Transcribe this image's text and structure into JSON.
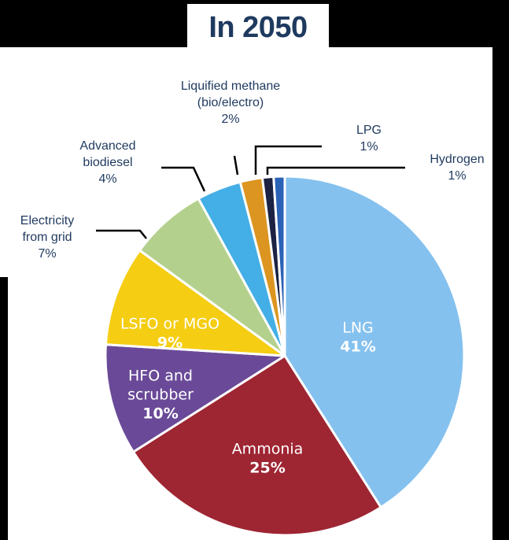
{
  "chart_data": {
    "type": "pie",
    "title": "In 2050",
    "start_angle_deg": 0,
    "direction": "clockwise",
    "slices": [
      {
        "label": [
          "LNG"
        ],
        "value": 41,
        "value_label": "41%",
        "color": "#85c1ee",
        "text_color": "#ffffff",
        "label_inside": true
      },
      {
        "label": [
          "Ammonia"
        ],
        "value": 25,
        "value_label": "25%",
        "color": "#9e2532",
        "text_color": "#ffffff",
        "label_inside": true
      },
      {
        "label": [
          "HFO and",
          "scrubber"
        ],
        "value": 10,
        "value_label": "10%",
        "color": "#6a4a98",
        "text_color": "#ffffff",
        "label_inside": true
      },
      {
        "label": [
          "LSFO or MGO"
        ],
        "value": 9,
        "value_label": "9%",
        "color": "#f5cd13",
        "text_color": "#ffffff",
        "label_inside": true
      },
      {
        "label": [
          "Electricity",
          "from grid"
        ],
        "value": 7,
        "value_label": "7%",
        "color": "#b4d08d",
        "text_color": "#1f3a5f",
        "label_inside": false
      },
      {
        "label": [
          "Advanced",
          "biodiesel"
        ],
        "value": 4,
        "value_label": "4%",
        "color": "#44aee6",
        "text_color": "#1f3a5f",
        "label_inside": false
      },
      {
        "label": [
          "Liquified methane",
          "(bio/electro)"
        ],
        "value": 2,
        "value_label": "2%",
        "color": "#dc9520",
        "text_color": "#1f3a5f",
        "label_inside": false
      },
      {
        "label": [
          "LPG"
        ],
        "value": 1,
        "value_label": "1%",
        "color": "#1b2243",
        "text_color": "#1f3a5f",
        "label_inside": false
      },
      {
        "label": [
          "Hydrogen"
        ],
        "value": 1,
        "value_label": "1%",
        "color": "#2a62b6",
        "text_color": "#1f3a5f",
        "label_inside": false
      }
    ]
  }
}
